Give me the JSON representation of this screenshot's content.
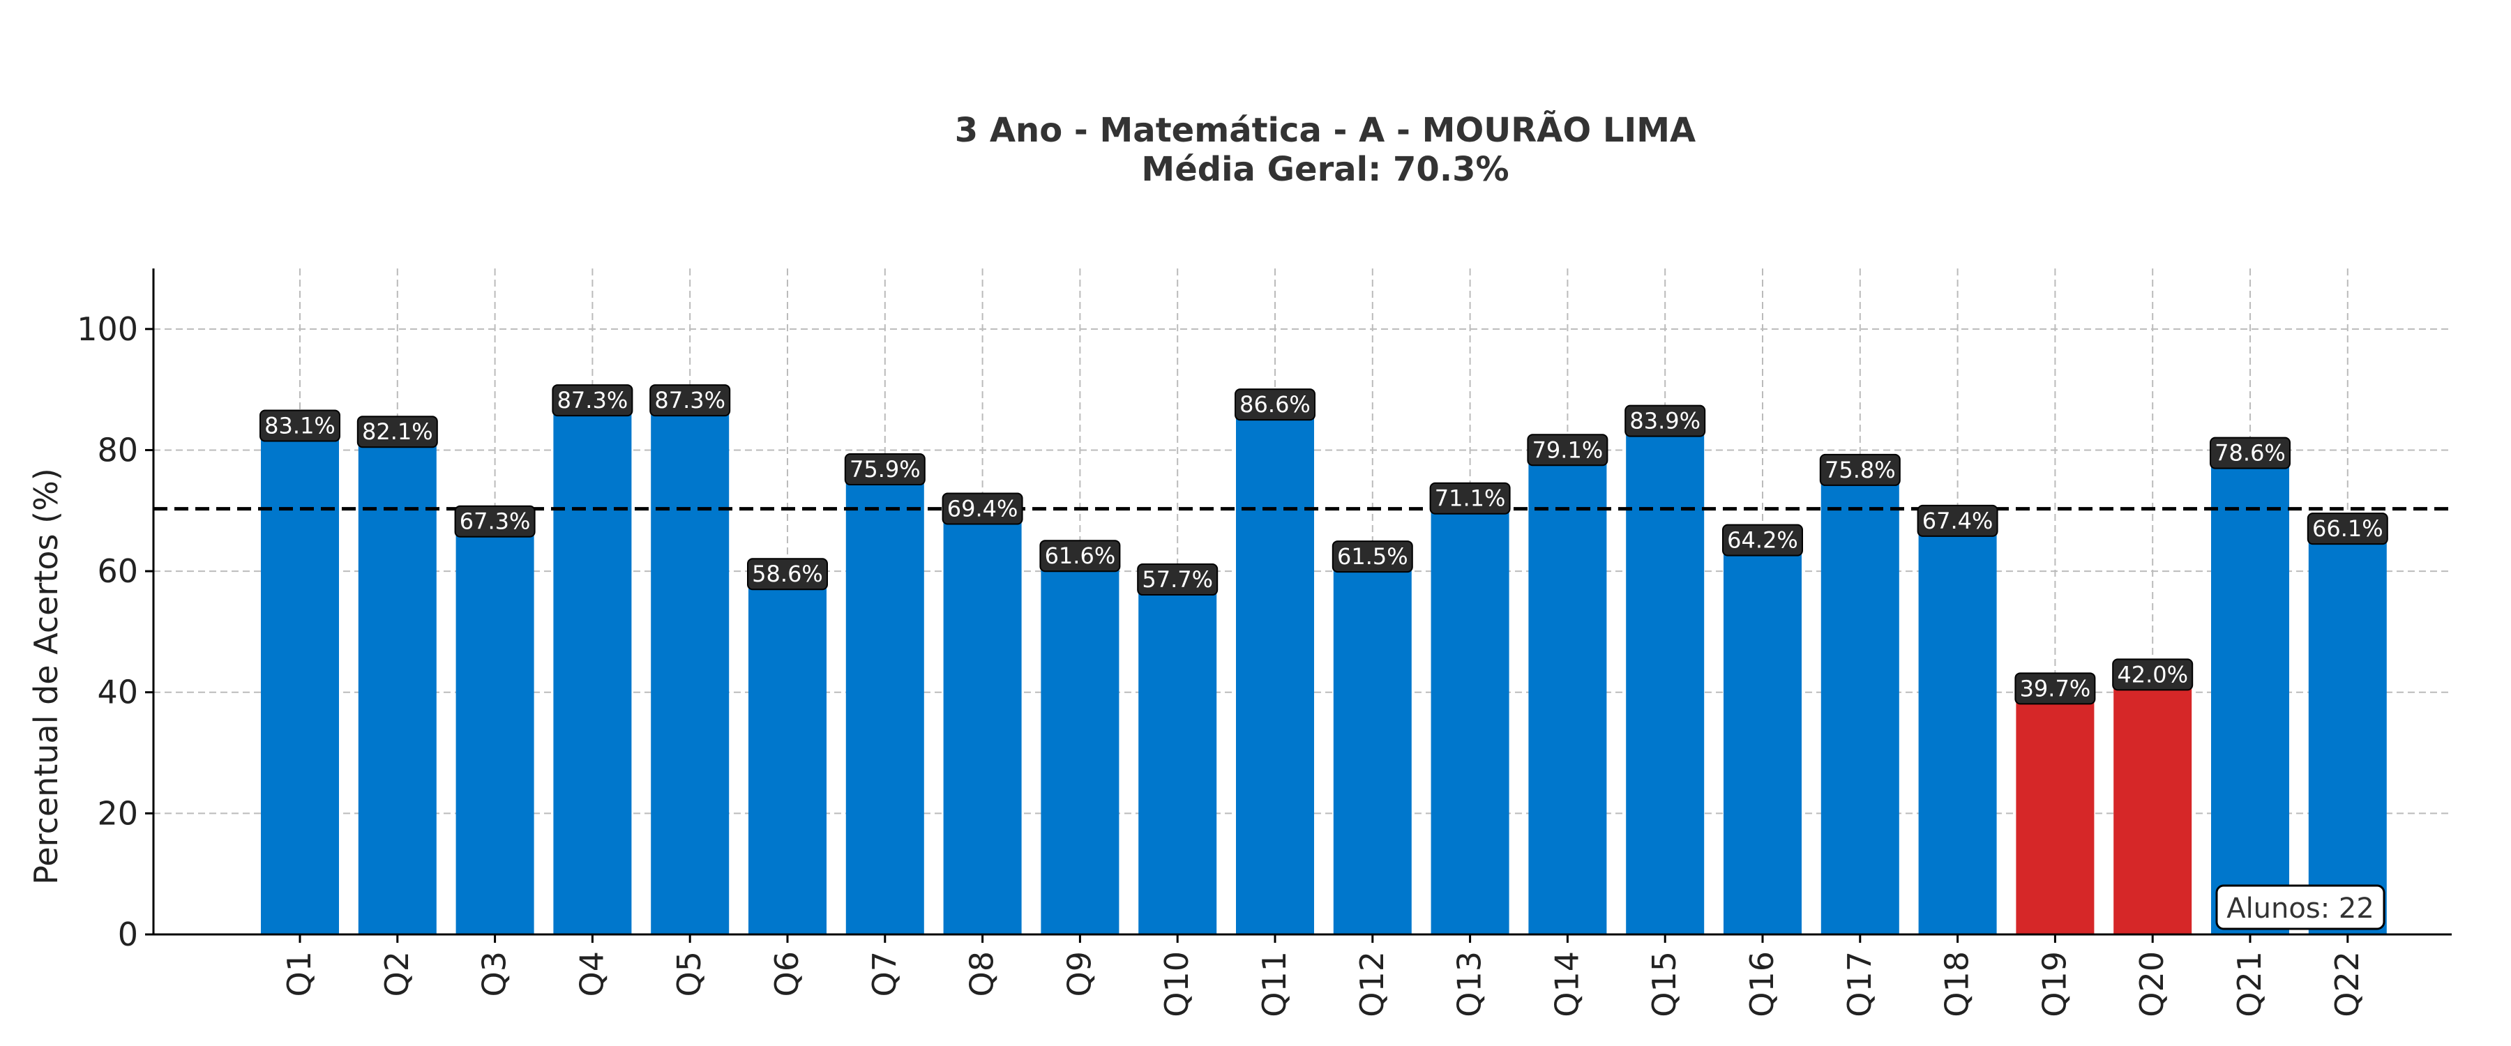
{
  "chart_data": {
    "type": "bar",
    "title_line1": "3 Ano - Matemática - A - MOURÃO LIMA",
    "title_line2": "Média Geral: 70.3%",
    "xlabel": "",
    "ylabel": "Percentual de Acertos (%)",
    "ylim": [
      0,
      110
    ],
    "yticks": [
      0,
      20,
      40,
      60,
      80,
      100
    ],
    "grid": true,
    "categories": [
      "Q1",
      "Q2",
      "Q3",
      "Q4",
      "Q5",
      "Q6",
      "Q7",
      "Q8",
      "Q9",
      "Q10",
      "Q11",
      "Q12",
      "Q13",
      "Q14",
      "Q15",
      "Q16",
      "Q17",
      "Q18",
      "Q19",
      "Q20",
      "Q21",
      "Q22"
    ],
    "values": [
      83.1,
      82.1,
      67.3,
      87.3,
      87.3,
      58.6,
      75.9,
      69.4,
      61.6,
      57.7,
      86.6,
      61.5,
      71.1,
      79.1,
      83.9,
      64.2,
      75.8,
      67.4,
      39.7,
      42.0,
      78.6,
      66.1
    ],
    "data_labels": [
      "83.1%",
      "82.1%",
      "67.3%",
      "87.3%",
      "87.3%",
      "58.6%",
      "75.9%",
      "69.4%",
      "61.6%",
      "57.7%",
      "86.6%",
      "61.5%",
      "71.1%",
      "79.1%",
      "83.9%",
      "64.2%",
      "75.8%",
      "67.4%",
      "39.7%",
      "42.0%",
      "78.6%",
      "66.1%"
    ],
    "mean_line": 70.3,
    "annotation": "Alunos: 22",
    "colors": {
      "bar_default": "#0077CC",
      "bar_low": "#D62728",
      "label_bg": "#2B2B2B",
      "mean_line": "#000000",
      "grid": "#BBBBBB"
    },
    "low_threshold": 50
  }
}
